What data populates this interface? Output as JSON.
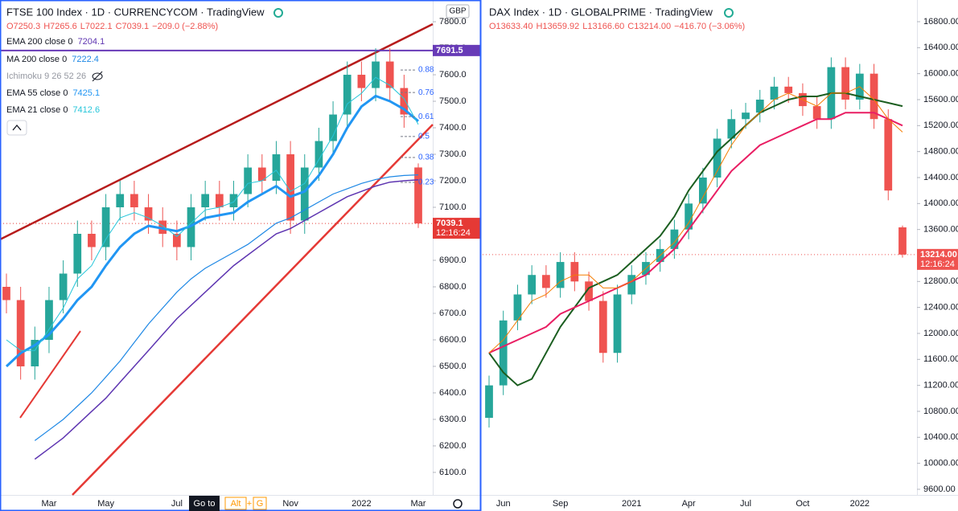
{
  "ui": {
    "goto": "Go to",
    "keys": [
      "Alt",
      "+",
      "G"
    ]
  },
  "chart_data": [
    {
      "type": "candlestick",
      "title": "FTSE 100 Index · 1D · CURRENCYCOM · TradingView",
      "ohlc_labels": [
        "O7250.3",
        "H7265.6",
        "L7022.1",
        "C7039.1",
        "−209.0 (−2.88%)"
      ],
      "currency": "GBP",
      "hidden_indicator": "Ichimoku 9 26 52 26",
      "categories": [
        null,
        null,
        null,
        "Mar",
        null,
        null,
        null,
        "May",
        null,
        null,
        null,
        null,
        "Jul",
        null,
        null,
        null,
        null,
        null,
        null,
        null,
        "Nov",
        null,
        null,
        null,
        null,
        "2022",
        null,
        null,
        null,
        "Mar"
      ],
      "open": [
        6800,
        6750,
        6500,
        6600,
        6750,
        6850,
        7000,
        6950,
        7100,
        7150,
        7100,
        7050,
        7000,
        6950,
        7100,
        7150,
        7100,
        7150,
        7250,
        7200,
        7300,
        7050,
        7250,
        7350,
        7450,
        7600,
        7550,
        7650,
        7550,
        7250.3
      ],
      "high": [
        6850,
        6800,
        6650,
        6800,
        6900,
        7050,
        7050,
        7150,
        7200,
        7200,
        7150,
        7100,
        7050,
        7150,
        7200,
        7200,
        7200,
        7300,
        7300,
        7350,
        7350,
        7300,
        7400,
        7500,
        7650,
        7650,
        7700,
        7700,
        7600,
        7265.6
      ],
      "low": [
        6700,
        6450,
        6450,
        6550,
        6700,
        6800,
        6900,
        6900,
        7050,
        7050,
        7000,
        6950,
        6900,
        6900,
        7050,
        7050,
        7050,
        7100,
        7150,
        7150,
        7000,
        7000,
        7200,
        7300,
        7400,
        7500,
        7500,
        7500,
        7400,
        7022.1
      ],
      "close": [
        6750,
        6500,
        6600,
        6750,
        6850,
        7000,
        6950,
        7100,
        7150,
        7100,
        7050,
        7000,
        6950,
        7100,
        7150,
        7100,
        7150,
        7250,
        7200,
        7300,
        7050,
        7250,
        7350,
        7450,
        7600,
        7550,
        7650,
        7550,
        7450,
        7039.1
      ],
      "series": [
        {
          "name": "EMA 200 close 0",
          "last": 7204.1,
          "color": "#5e35b1",
          "width": 1.5,
          "values": [
            null,
            null,
            6150,
            6190,
            6230,
            6280,
            6330,
            6380,
            6440,
            6500,
            6560,
            6620,
            6680,
            6730,
            6780,
            6830,
            6880,
            6920,
            6960,
            7000,
            7020,
            7050,
            7080,
            7110,
            7140,
            7160,
            7180,
            7195,
            7200,
            7204.1
          ]
        },
        {
          "name": "MA 200 close 0",
          "last": 7222.4,
          "color": "#1e88e5",
          "width": 1.2,
          "values": [
            null,
            null,
            6220,
            6260,
            6300,
            6350,
            6400,
            6460,
            6520,
            6590,
            6660,
            6720,
            6780,
            6830,
            6870,
            6900,
            6930,
            6960,
            7000,
            7040,
            7060,
            7090,
            7120,
            7150,
            7170,
            7190,
            7205,
            7215,
            7220,
            7222.4
          ]
        },
        {
          "name": "EMA 55 close 0",
          "last": 7425.1,
          "color": "#2196f3",
          "width": 3,
          "values": [
            6500,
            6550,
            6580,
            6620,
            6680,
            6750,
            6800,
            6880,
            6950,
            7000,
            7030,
            7020,
            7010,
            7030,
            7060,
            7070,
            7080,
            7120,
            7150,
            7180,
            7140,
            7160,
            7220,
            7300,
            7400,
            7480,
            7520,
            7500,
            7470,
            7425.1
          ]
        },
        {
          "name": "EMA 21 close 0",
          "last": 7412.6,
          "color": "#26c6da",
          "width": 1,
          "values": [
            6600,
            6560,
            6560,
            6640,
            6720,
            6830,
            6880,
            6980,
            7060,
            7080,
            7060,
            7030,
            6990,
            7040,
            7090,
            7100,
            7120,
            7190,
            7200,
            7240,
            7160,
            7190,
            7280,
            7370,
            7490,
            7530,
            7590,
            7560,
            7510,
            7412.6
          ]
        }
      ],
      "fib_levels": [
        {
          "value": 7618,
          "label": "0.88"
        },
        {
          "value": 7533,
          "label": "0.76"
        },
        {
          "value": 7442,
          "label": "0.61"
        },
        {
          "value": 7367,
          "label": "0.5"
        },
        {
          "value": 7288,
          "label": "0.38"
        },
        {
          "value": 7194,
          "label": "0.23"
        }
      ],
      "price_tags": [
        {
          "value": 7691.5,
          "label": "7691.5",
          "color": "#673ab7",
          "line": "solid"
        },
        {
          "value": 7039.1,
          "label": "7039.1",
          "time": "12:16:24",
          "color": "#e53935",
          "line": "dotted"
        }
      ],
      "ylim": [
        6015,
        7882
      ],
      "yticks": [
        {
          "value": 6100,
          "label": "6100.0"
        },
        {
          "value": 6200,
          "label": "6200.0"
        },
        {
          "value": 6300,
          "label": "6300.0"
        },
        {
          "value": 6400,
          "label": "6400.0"
        },
        {
          "value": 6500,
          "label": "6500.0"
        },
        {
          "value": 6600,
          "label": "6600.0"
        },
        {
          "value": 6700,
          "label": "6700.0"
        },
        {
          "value": 6800,
          "label": "6800.0"
        },
        {
          "value": 6900,
          "label": "6900.0"
        },
        {
          "value": 7000,
          "label": "7000.0"
        },
        {
          "value": 7100,
          "label": "7100.0"
        },
        {
          "value": 7200,
          "label": "7200.0"
        },
        {
          "value": 7300,
          "label": "7300.0"
        },
        {
          "value": 7400,
          "label": "7400.0"
        },
        {
          "value": 7500,
          "label": "7500.0"
        },
        {
          "value": 7600,
          "label": "7600.0"
        },
        {
          "value": 7700,
          "label": "7700.0"
        },
        {
          "value": 7800,
          "label": "7800.0"
        }
      ]
    },
    {
      "type": "candlestick",
      "title": "DAX Index · 1D · GLOBALPRIME · TradingView",
      "ohlc_labels": [
        "O13633.40",
        "H13659.92",
        "L13166.60",
        "C13214.00",
        "−416.70 (−3.06%)"
      ],
      "categories": [
        null,
        "Jun",
        null,
        null,
        null,
        "Sep",
        null,
        null,
        null,
        null,
        "2021",
        null,
        null,
        null,
        "Apr",
        null,
        null,
        null,
        "Jul",
        null,
        null,
        null,
        "Oct",
        null,
        null,
        null,
        "2022",
        null,
        null,
        null
      ],
      "open": [
        10700,
        11200,
        12200,
        12600,
        12900,
        12700,
        13100,
        12800,
        12500,
        11700,
        12600,
        12900,
        13100,
        13300,
        13600,
        14000,
        14400,
        15000,
        15300,
        15400,
        15600,
        15800,
        15700,
        15500,
        15300,
        16100,
        15600,
        16000,
        15300,
        13633.4
      ],
      "high": [
        11350,
        12350,
        12750,
        13050,
        13050,
        13250,
        13250,
        12950,
        12650,
        12750,
        13050,
        13250,
        13450,
        13750,
        14150,
        14550,
        15150,
        15450,
        15550,
        15750,
        15950,
        15950,
        15850,
        15650,
        16250,
        16250,
        16150,
        16150,
        15450,
        13659.92
      ],
      "low": [
        10550,
        11050,
        12050,
        12450,
        12550,
        12550,
        12650,
        12350,
        11550,
        11550,
        12450,
        12750,
        12950,
        13150,
        13450,
        13850,
        14250,
        14850,
        15150,
        15250,
        15450,
        15550,
        15350,
        15150,
        15150,
        15450,
        15450,
        15150,
        14050,
        13166.6
      ],
      "close": [
        11200,
        12200,
        12600,
        12900,
        12700,
        13100,
        12800,
        12500,
        11700,
        12600,
        12900,
        13100,
        13300,
        13600,
        14000,
        14400,
        15000,
        15300,
        15400,
        15600,
        15800,
        15700,
        15500,
        15300,
        16100,
        15600,
        16000,
        15300,
        14200,
        13214
      ],
      "series": [
        {
          "color": "#1b5e20",
          "width": 2,
          "values": [
            11700,
            11400,
            11200,
            11300,
            11700,
            12100,
            12400,
            12700,
            12800,
            12900,
            13100,
            13300,
            13500,
            13800,
            14200,
            14500,
            14800,
            15000,
            15200,
            15400,
            15500,
            15600,
            15650,
            15650,
            15700,
            15700,
            15650,
            15600,
            15550,
            15500
          ]
        },
        {
          "color": "#e91e63",
          "width": 2,
          "values": [
            11700,
            11800,
            11900,
            12000,
            12100,
            12300,
            12400,
            12500,
            12600,
            12700,
            12800,
            12900,
            13100,
            13300,
            13600,
            13900,
            14200,
            14500,
            14700,
            14900,
            15000,
            15100,
            15200,
            15300,
            15300,
            15400,
            15400,
            15400,
            15300,
            15200
          ]
        },
        {
          "color": "#f57c00",
          "width": 1,
          "values": [
            11700,
            11900,
            12200,
            12500,
            12600,
            12800,
            12900,
            12900,
            12700,
            12700,
            12800,
            13000,
            13200,
            13400,
            13700,
            14100,
            14500,
            14900,
            15200,
            15400,
            15600,
            15700,
            15600,
            15500,
            15700,
            15700,
            15800,
            15600,
            15300,
            15100
          ]
        }
      ],
      "price_tags": [
        {
          "value": 13214,
          "label": "13214.00",
          "time": "12:16:24",
          "color": "#ef5350",
          "line": "dotted"
        }
      ],
      "ylim": [
        9513,
        17134
      ],
      "yticks": [
        {
          "value": 9600,
          "label": "9600.00"
        },
        {
          "value": 10000,
          "label": "10000.00"
        },
        {
          "value": 10400,
          "label": "10400.00"
        },
        {
          "value": 10800,
          "label": "10800.00"
        },
        {
          "value": 11200,
          "label": "11200.00"
        },
        {
          "value": 11600,
          "label": "11600.00"
        },
        {
          "value": 12000,
          "label": "12000.00"
        },
        {
          "value": 12400,
          "label": "12400.00"
        },
        {
          "value": 12800,
          "label": "12800.00"
        },
        {
          "value": 13200,
          "label": "13200.00"
        },
        {
          "value": 13600,
          "label": "13600.00"
        },
        {
          "value": 14000,
          "label": "14000.00"
        },
        {
          "value": 14400,
          "label": "14400.00"
        },
        {
          "value": 14800,
          "label": "14800.00"
        },
        {
          "value": 15200,
          "label": "15200.00"
        },
        {
          "value": 15600,
          "label": "15600.00"
        },
        {
          "value": 16000,
          "label": "16000.00"
        },
        {
          "value": 16400,
          "label": "16400.00"
        },
        {
          "value": 16800,
          "label": "16800.00"
        }
      ]
    }
  ]
}
